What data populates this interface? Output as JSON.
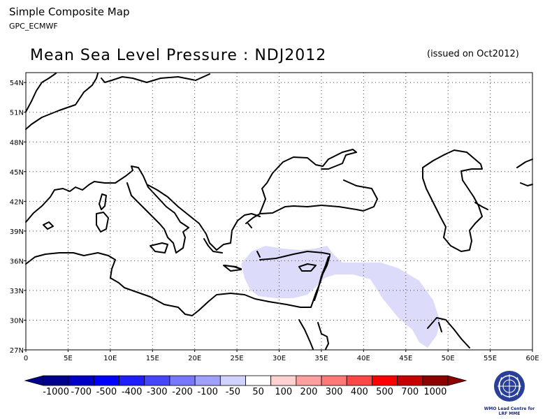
{
  "header": {
    "title": "Simple Composite Map",
    "subtitle": "GPC_ECMWF"
  },
  "map": {
    "title": "Mean Sea Level Pressure : NDJ2012",
    "issued": "(issued on Oct2012)",
    "lat_labels": [
      "54N",
      "51N",
      "48N",
      "45N",
      "42N",
      "39N",
      "36N",
      "33N",
      "30N",
      "27N"
    ],
    "lon_labels": [
      "0",
      "5E",
      "10E",
      "15E",
      "20E",
      "25E",
      "30E",
      "35E",
      "40E",
      "45E",
      "50E",
      "55E",
      "60E"
    ],
    "extent": {
      "lon": [
        0,
        60
      ],
      "lat": [
        27,
        55
      ]
    }
  },
  "colorbar": {
    "labels": [
      "-1000",
      "-700",
      "-500",
      "-400",
      "-300",
      "-200",
      "-100",
      "-50",
      "50",
      "100",
      "200",
      "300",
      "400",
      "500",
      "700",
      "1000"
    ],
    "colors": [
      "#00008c",
      "#0000c8",
      "#0000ff",
      "#1e1eff",
      "#4646ff",
      "#7878ff",
      "#a0a0ff",
      "#d2d2ff",
      "#ffffff",
      "#ffd2d2",
      "#ffa0a0",
      "#ff7878",
      "#ff4646",
      "#ff0000",
      "#c80000",
      "#8c0000"
    ]
  },
  "anomaly_color": "#dcdcfa",
  "logo": {
    "line1": "WMO Lead Centre for",
    "line2": "LRF MME"
  }
}
